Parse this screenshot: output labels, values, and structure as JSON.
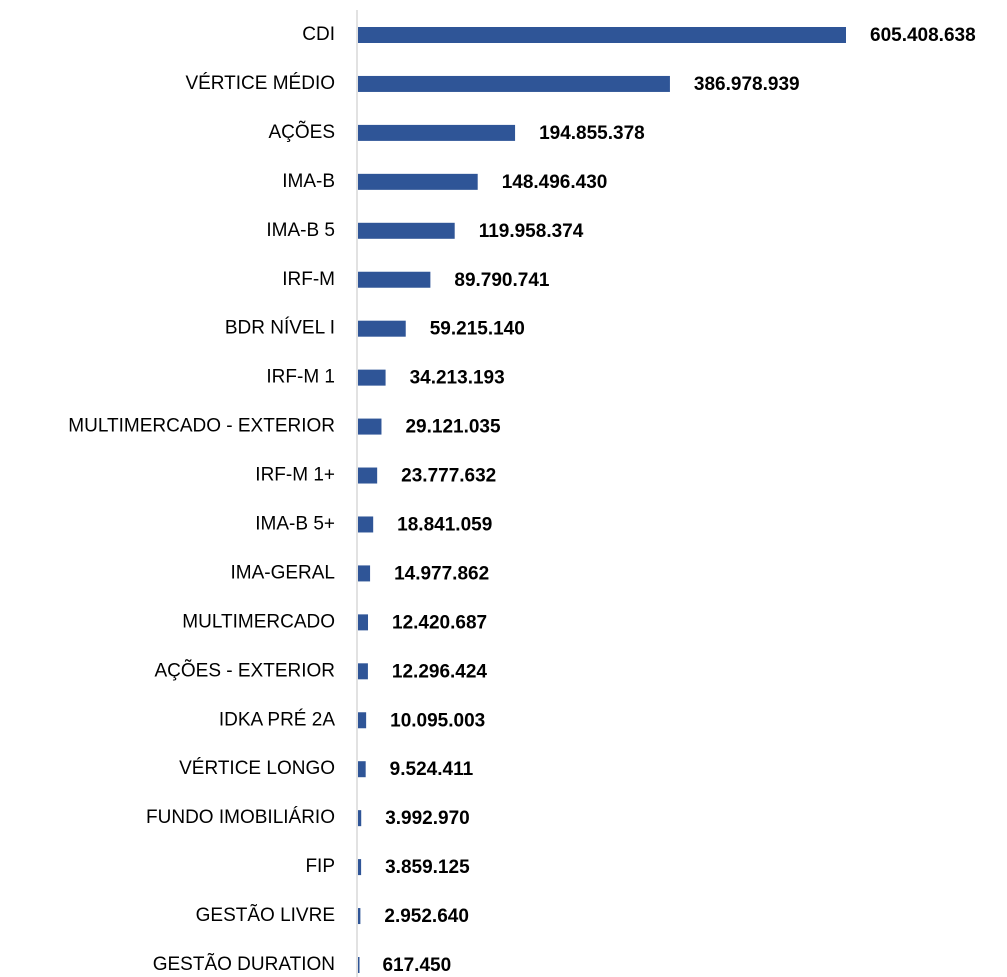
{
  "chart_data": {
    "type": "bar",
    "orientation": "horizontal",
    "color": "#2f5597",
    "categories": [
      "CDI",
      "VÉRTICE MÉDIO",
      "AÇÕES ",
      "IMA-B",
      "IMA-B 5",
      "IRF-M",
      "BDR NÍVEL I",
      "IRF-M 1",
      "MULTIMERCADO - EXTERIOR",
      "IRF-M 1+",
      "IMA-B 5+",
      "IMA-GERAL",
      "MULTIMERCADO",
      "AÇÕES - EXTERIOR",
      "IDKA PRÉ 2A",
      "VÉRTICE LONGO",
      "FUNDO IMOBILIÁRIO",
      "FIP",
      "GESTÃO LIVRE",
      "GESTÃO DURATION"
    ],
    "values": [
      605408638,
      386978939,
      194855378,
      148496430,
      119958374,
      89790741,
      59215140,
      34213193,
      29121035,
      23777632,
      18841059,
      14977862,
      12420687,
      12296424,
      10095003,
      9524411,
      3992970,
      3859125,
      2952640,
      617450
    ],
    "value_labels": [
      "605.408.638",
      "386.978.939",
      "194.855.378",
      "148.496.430",
      "119.958.374",
      "89.790.741",
      "59.215.140",
      "34.213.193",
      "29.121.035",
      "23.777.632",
      "18.841.059",
      "14.977.862",
      "12.420.687",
      "12.296.424",
      "10.095.003",
      "9.524.411",
      "3.992.970",
      "3.859.125",
      "2.952.640",
      "617.450"
    ]
  }
}
